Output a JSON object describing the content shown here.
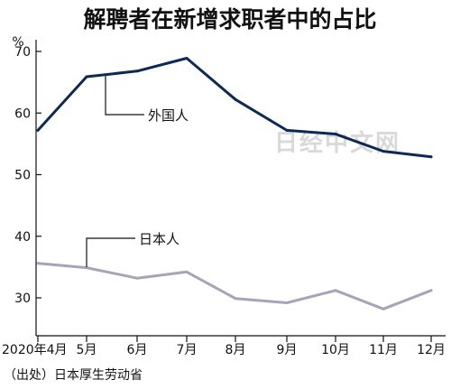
{
  "chart_data": {
    "type": "line",
    "title": "解聘者在新增求职者中的占比",
    "ylabel": "%",
    "categories": [
      "2020年4月",
      "5月",
      "6月",
      "7月",
      "8月",
      "9月",
      "10月",
      "11月",
      "12月"
    ],
    "ylim": [
      25,
      73
    ],
    "yticks": [
      30,
      40,
      50,
      60,
      70
    ],
    "grid": false,
    "series": [
      {
        "name": "外国人",
        "values": [
          57.2,
          65.9,
          66.8,
          68.9,
          62.2,
          57.2,
          56.6,
          53.8,
          52.9
        ],
        "color": "#0d2a55"
      },
      {
        "name": "日本人",
        "values": [
          35.6,
          34.9,
          33.2,
          34.2,
          29.9,
          29.2,
          31.2,
          28.2,
          31.2
        ],
        "color": "#a6a4b7"
      }
    ],
    "source": "（出处）日本厚生劳动省",
    "watermark": "日经中文网"
  }
}
